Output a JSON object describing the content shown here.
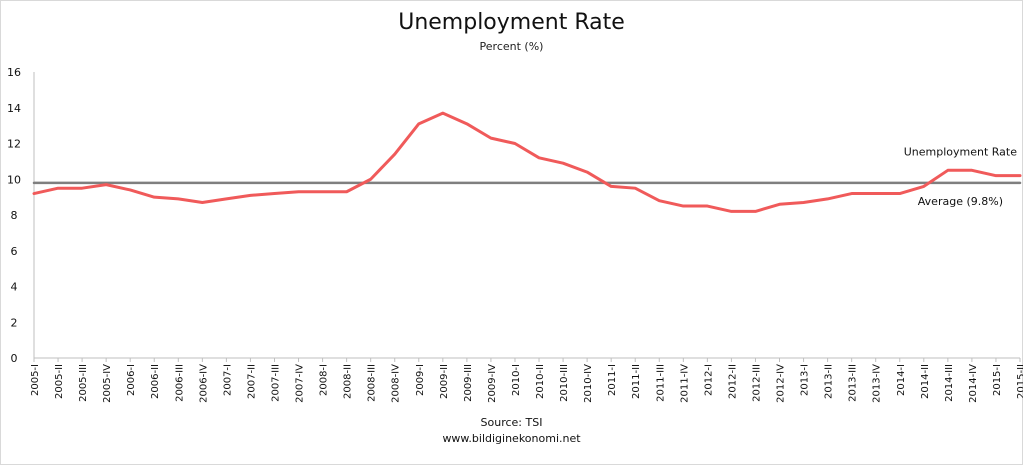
{
  "chart_data": {
    "type": "line",
    "title": "Unemployment Rate",
    "subtitle": "Percent (%)",
    "xlabel": "",
    "ylabel": "",
    "ylim": [
      0,
      16
    ],
    "yticks": [
      0,
      2,
      4,
      6,
      8,
      10,
      12,
      14,
      16
    ],
    "grid": false,
    "categories": [
      "2005-I",
      "2005-II",
      "2005-III",
      "2005-IV",
      "2006-I",
      "2006-II",
      "2006-III",
      "2006-IV",
      "2007-I",
      "2007-II",
      "2007-III",
      "2007-IV",
      "2008-I",
      "2008-II",
      "2008-III",
      "2008-IV",
      "2009-I",
      "2009-II",
      "2009-III",
      "2009-IV",
      "2010-I",
      "2010-II",
      "2010-III",
      "2010-IV",
      "2011-I",
      "2011-II",
      "2011-III",
      "2011-IV",
      "2012-I",
      "2012-II",
      "2012-III",
      "2012-IV",
      "2013-I",
      "2013-II",
      "2013-III",
      "2013-IV",
      "2014-I",
      "2014-II",
      "2014-III",
      "2014-IV",
      "2015-I",
      "2015-II"
    ],
    "series": [
      {
        "name": "Unemployment Rate",
        "color": "#f05a5a",
        "values": [
          9.2,
          9.5,
          9.5,
          9.7,
          9.4,
          9.0,
          8.9,
          8.7,
          8.9,
          9.1,
          9.2,
          9.3,
          9.3,
          9.3,
          10.0,
          11.4,
          13.1,
          13.7,
          13.1,
          12.3,
          12.0,
          11.2,
          10.9,
          10.4,
          9.6,
          9.5,
          8.8,
          8.5,
          8.5,
          8.2,
          8.2,
          8.6,
          8.7,
          8.9,
          9.2,
          9.2,
          9.2,
          9.6,
          10.5,
          10.5,
          10.2,
          10.2
        ]
      },
      {
        "name": "Average (9.8%)",
        "color": "#7f7f7f",
        "values": [
          9.8,
          9.8,
          9.8,
          9.8,
          9.8,
          9.8,
          9.8,
          9.8,
          9.8,
          9.8,
          9.8,
          9.8,
          9.8,
          9.8,
          9.8,
          9.8,
          9.8,
          9.8,
          9.8,
          9.8,
          9.8,
          9.8,
          9.8,
          9.8,
          9.8,
          9.8,
          9.8,
          9.8,
          9.8,
          9.8,
          9.8,
          9.8,
          9.8,
          9.8,
          9.8,
          9.8,
          9.8,
          9.8,
          9.8,
          9.8,
          9.8,
          9.8
        ]
      }
    ]
  },
  "footer": {
    "source": "Source: TSI",
    "website": "www.bildiginekonomi.net"
  }
}
